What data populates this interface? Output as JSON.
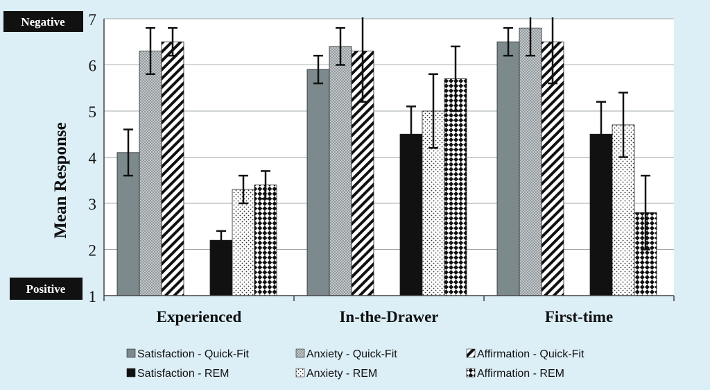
{
  "chart_data": {
    "type": "bar",
    "ylabel": "Mean Response",
    "ylim": [
      1,
      7
    ],
    "yticks": [
      1,
      2,
      3,
      4,
      5,
      6,
      7
    ],
    "grid": true,
    "legend_position": "bottom",
    "annotations": {
      "top": "Negative",
      "bottom": "Positive"
    },
    "categories": [
      "Experienced",
      "In-the-Drawer",
      "First-time"
    ],
    "series": [
      {
        "name": "Satisfaction - Quick-Fit",
        "pattern": "solid-gray",
        "values": [
          4.1,
          5.9,
          6.5
        ],
        "errors": [
          0.5,
          0.3,
          0.3
        ]
      },
      {
        "name": "Anxiety - Quick-Fit",
        "pattern": "gray-dots",
        "values": [
          6.3,
          6.4,
          6.8
        ],
        "errors": [
          0.5,
          0.4,
          0.6
        ]
      },
      {
        "name": "Affirmation - Quick-Fit",
        "pattern": "diagonal-stripes",
        "values": [
          6.5,
          6.3,
          6.5
        ],
        "errors": [
          0.3,
          1.1,
          0.9
        ]
      },
      {
        "name": "Satisfaction - REM",
        "pattern": "solid-black",
        "values": [
          2.2,
          4.5,
          4.5
        ],
        "errors": [
          0.2,
          0.6,
          0.7
        ]
      },
      {
        "name": "Anxiety - REM",
        "pattern": "white-dots",
        "values": [
          3.3,
          5.0,
          4.7
        ],
        "errors": [
          0.3,
          0.8,
          0.7
        ]
      },
      {
        "name": "Affirmation - REM",
        "pattern": "checker",
        "values": [
          3.4,
          5.7,
          2.8
        ],
        "errors": [
          0.3,
          0.7,
          0.8
        ]
      }
    ]
  },
  "colors": {
    "background": "#dceef6",
    "plot_area": "#ffffff",
    "grid": "#a0a8ac",
    "gray_bar": "#7d8a8d",
    "black": "#111111"
  }
}
